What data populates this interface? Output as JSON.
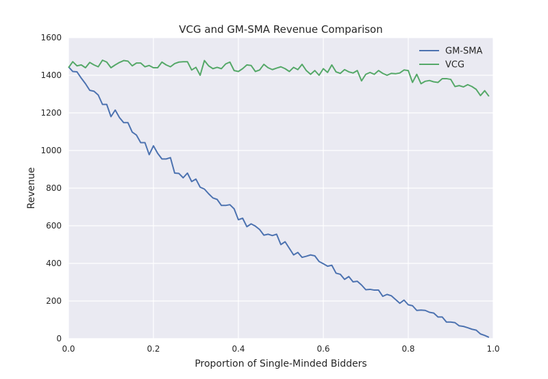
{
  "chart_data": {
    "type": "line",
    "title": "VCG and GM-SMA Revenue Comparison",
    "xlabel": "Proportion of Single-Minded Bidders",
    "ylabel": "Revenue",
    "xlim": [
      0.0,
      1.0
    ],
    "ylim": [
      0,
      1600
    ],
    "xticks": [
      0.0,
      0.2,
      0.4,
      0.6,
      0.8,
      1.0
    ],
    "xtick_labels": [
      "0.0",
      "0.2",
      "0.4",
      "0.6",
      "0.8",
      "1.0"
    ],
    "yticks": [
      0,
      200,
      400,
      600,
      800,
      1000,
      1200,
      1400,
      1600
    ],
    "ytick_labels": [
      "0",
      "200",
      "400",
      "600",
      "800",
      "1000",
      "1200",
      "1400",
      "1600"
    ],
    "grid": true,
    "legend_position": "top-right",
    "colors": {
      "GM-SMA": "#4c72b0",
      "VCG": "#55a868",
      "background": "#eaeaf2",
      "grid": "#ffffff"
    },
    "x": [
      0.0,
      0.01,
      0.02,
      0.03,
      0.04,
      0.05,
      0.06,
      0.07,
      0.08,
      0.09,
      0.1,
      0.11,
      0.12,
      0.13,
      0.14,
      0.15,
      0.16,
      0.17,
      0.18,
      0.19,
      0.2,
      0.21,
      0.22,
      0.23,
      0.24,
      0.25,
      0.26,
      0.27,
      0.28,
      0.29,
      0.3,
      0.31,
      0.32,
      0.33,
      0.34,
      0.35,
      0.36,
      0.37,
      0.38,
      0.39,
      0.4,
      0.41,
      0.42,
      0.43,
      0.44,
      0.45,
      0.46,
      0.47,
      0.48,
      0.49,
      0.5,
      0.51,
      0.52,
      0.53,
      0.54,
      0.55,
      0.56,
      0.57,
      0.58,
      0.59,
      0.6,
      0.61,
      0.62,
      0.63,
      0.64,
      0.65,
      0.66,
      0.67,
      0.68,
      0.69,
      0.7,
      0.71,
      0.72,
      0.73,
      0.74,
      0.75,
      0.76,
      0.77,
      0.78,
      0.79,
      0.8,
      0.81,
      0.82,
      0.83,
      0.84,
      0.85,
      0.86,
      0.87,
      0.88,
      0.89,
      0.9,
      0.91,
      0.92,
      0.93,
      0.94,
      0.95,
      0.96,
      0.97,
      0.98,
      0.99
    ],
    "series": [
      {
        "name": "GM-SMA",
        "values": [
          1445,
          1420,
          1418,
          1385,
          1355,
          1320,
          1315,
          1295,
          1245,
          1245,
          1180,
          1215,
          1175,
          1148,
          1148,
          1098,
          1082,
          1042,
          1042,
          978,
          1025,
          985,
          955,
          955,
          962,
          880,
          878,
          855,
          880,
          835,
          848,
          805,
          795,
          770,
          748,
          740,
          708,
          708,
          712,
          690,
          632,
          640,
          595,
          610,
          598,
          580,
          550,
          555,
          548,
          555,
          500,
          515,
          480,
          445,
          458,
          432,
          438,
          445,
          440,
          410,
          398,
          385,
          390,
          348,
          342,
          315,
          330,
          302,
          305,
          285,
          260,
          262,
          258,
          258,
          225,
          235,
          228,
          208,
          188,
          205,
          180,
          175,
          150,
          152,
          150,
          140,
          136,
          115,
          115,
          88,
          88,
          85,
          68,
          65,
          58,
          50,
          45,
          25,
          17,
          7
        ]
      },
      {
        "name": "VCG",
        "values": [
          1440,
          1472,
          1450,
          1455,
          1440,
          1468,
          1455,
          1445,
          1480,
          1470,
          1440,
          1455,
          1468,
          1478,
          1475,
          1450,
          1465,
          1465,
          1445,
          1452,
          1440,
          1440,
          1470,
          1455,
          1445,
          1462,
          1470,
          1472,
          1472,
          1428,
          1442,
          1400,
          1478,
          1450,
          1435,
          1442,
          1435,
          1460,
          1470,
          1425,
          1420,
          1435,
          1455,
          1452,
          1420,
          1428,
          1458,
          1440,
          1430,
          1438,
          1445,
          1435,
          1420,
          1442,
          1430,
          1458,
          1425,
          1405,
          1425,
          1400,
          1435,
          1415,
          1455,
          1418,
          1410,
          1430,
          1418,
          1412,
          1425,
          1370,
          1405,
          1415,
          1405,
          1425,
          1410,
          1400,
          1410,
          1408,
          1412,
          1428,
          1425,
          1362,
          1405,
          1355,
          1368,
          1372,
          1365,
          1362,
          1382,
          1382,
          1378,
          1340,
          1345,
          1338,
          1350,
          1340,
          1325,
          1292,
          1318,
          1288
        ]
      }
    ]
  }
}
